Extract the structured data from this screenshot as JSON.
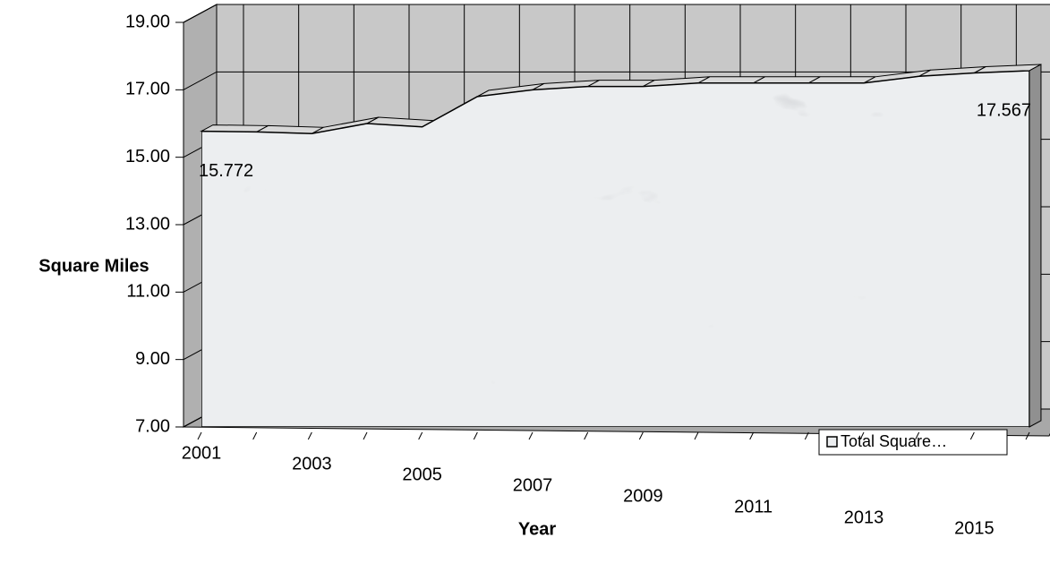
{
  "chart_data": {
    "type": "area",
    "categories": [
      "2001",
      null,
      "2003",
      null,
      "2005",
      null,
      "2007",
      null,
      "2009",
      null,
      "2011",
      null,
      "2013",
      null,
      "2015",
      null
    ],
    "series": [
      {
        "name": "Total Square…",
        "color": "#eceef0",
        "values": [
          15.772,
          15.75,
          15.7,
          16.0,
          15.9,
          16.8,
          17.0,
          17.1,
          17.1,
          17.2,
          17.2,
          17.2,
          17.2,
          17.4,
          17.5,
          17.567
        ],
        "value_labels": [
          "15.772",
          null,
          null,
          null,
          null,
          null,
          null,
          null,
          null,
          null,
          null,
          null,
          null,
          null,
          null,
          "17.567"
        ]
      }
    ],
    "y_label": "Square Miles",
    "x_label": "Year",
    "ylim": [
      7,
      19
    ],
    "yticks": [
      {
        "value": 7,
        "label": "7.00"
      },
      {
        "value": 9,
        "label": "9.00"
      },
      {
        "value": 11,
        "label": "11.00"
      },
      {
        "value": 13,
        "label": "13.00"
      },
      {
        "value": 15,
        "label": "15.00"
      },
      {
        "value": 17,
        "label": "17.00"
      },
      {
        "value": 19,
        "label": "19.00"
      }
    ],
    "grid": true,
    "legend": "lower right"
  }
}
